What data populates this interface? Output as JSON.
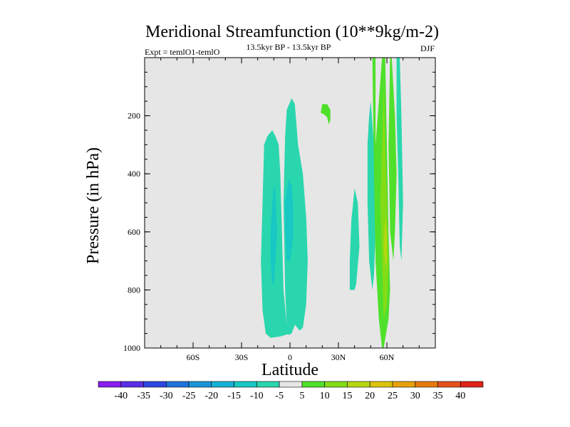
{
  "chart_data": {
    "type": "contour",
    "title": "Meridional Streamfunction (10**9kg/m-2)",
    "subtitle_left": "Expt = temlO1-temlO",
    "subtitle_center": "13.5kyr BP - 13.5kyr BP",
    "subtitle_right": "DJF",
    "xlabel": "Latitude",
    "ylabel": "Pressure (in hPa)",
    "x_range": [
      -90,
      90
    ],
    "y_range": [
      0,
      1000
    ],
    "y_inverted": true,
    "x_ticks": [
      {
        "value": -60,
        "label": "60S"
      },
      {
        "value": -30,
        "label": "30S"
      },
      {
        "value": 0,
        "label": "0"
      },
      {
        "value": 30,
        "label": "30N"
      },
      {
        "value": 60,
        "label": "60N"
      }
    ],
    "y_ticks": [
      {
        "value": 200,
        "label": "200"
      },
      {
        "value": 400,
        "label": "400"
      },
      {
        "value": 600,
        "label": "600"
      },
      {
        "value": 800,
        "label": "800"
      },
      {
        "value": 1000,
        "label": "1000"
      }
    ],
    "background_color": "#e6e6e6",
    "colorbar": {
      "labels": [
        "-40",
        "-35",
        "-30",
        "-25",
        "-20",
        "-15",
        "-10",
        "-5",
        "5",
        "10",
        "15",
        "20",
        "25",
        "30",
        "35",
        "40"
      ],
      "colors": [
        "#8a1cf0",
        "#5a2ee6",
        "#2f47e0",
        "#1f73dc",
        "#1a95d8",
        "#14b1d4",
        "#17c8c4",
        "#2ad6ad",
        "#e6e6e6",
        "#50e02b",
        "#84dc16",
        "#b4d810",
        "#dcc40c",
        "#e6a20c",
        "#e67a0e",
        "#e6501a",
        "#e02418"
      ]
    },
    "regions": [
      {
        "name": "tropical-cell-outer",
        "color": "#2ad6ad",
        "points": [
          [
            -15,
            950
          ],
          [
            -17,
            870
          ],
          [
            -18,
            700
          ],
          [
            -17,
            500
          ],
          [
            -16,
            300
          ],
          [
            -14,
            270
          ],
          [
            -11,
            250
          ],
          [
            -9,
            270
          ],
          [
            -7,
            300
          ],
          [
            -6,
            400
          ],
          [
            -5,
            600
          ],
          [
            -4,
            800
          ],
          [
            -2,
            920
          ],
          [
            0,
            950
          ],
          [
            -6,
            960
          ],
          [
            -12,
            965
          ]
        ]
      },
      {
        "name": "tropical-cell-outer-east",
        "color": "#2ad6ad",
        "points": [
          [
            -2,
            920
          ],
          [
            -3,
            800
          ],
          [
            -4,
            500
          ],
          [
            -3,
            270
          ],
          [
            -2,
            180
          ],
          [
            1,
            140
          ],
          [
            3,
            160
          ],
          [
            5,
            300
          ],
          [
            8,
            400
          ],
          [
            10,
            550
          ],
          [
            11,
            700
          ],
          [
            10,
            850
          ],
          [
            8,
            930
          ],
          [
            6,
            940
          ],
          [
            3,
            920
          ],
          [
            1,
            950
          ],
          [
            -1,
            955
          ]
        ]
      },
      {
        "name": "tropical-cell-inner-west",
        "color": "#17c8c4",
        "points": [
          [
            -11,
            780
          ],
          [
            -12,
            700
          ],
          [
            -12,
            600
          ],
          [
            -11,
            500
          ],
          [
            -10,
            440
          ],
          [
            -9,
            460
          ],
          [
            -8,
            600
          ],
          [
            -9,
            700
          ],
          [
            -10,
            780
          ]
        ]
      },
      {
        "name": "tropical-cell-inner-east",
        "color": "#17c8c4",
        "points": [
          [
            -2,
            700
          ],
          [
            -3,
            600
          ],
          [
            -3,
            500
          ],
          [
            -1,
            420
          ],
          [
            1,
            440
          ],
          [
            2,
            520
          ],
          [
            2,
            620
          ],
          [
            0,
            700
          ]
        ]
      },
      {
        "name": "subtropical-cell-20n",
        "color": "#50e02b",
        "points": [
          [
            19,
            190
          ],
          [
            20,
            160
          ],
          [
            23,
            160
          ],
          [
            25,
            180
          ],
          [
            25,
            215
          ],
          [
            24,
            230
          ],
          [
            23,
            205
          ],
          [
            21,
            195
          ]
        ]
      },
      {
        "name": "midlat-cell-40n",
        "color": "#2ad6ad",
        "points": [
          [
            37,
            800
          ],
          [
            37,
            700
          ],
          [
            38,
            560
          ],
          [
            40,
            450
          ],
          [
            42,
            500
          ],
          [
            43,
            650
          ],
          [
            41,
            780
          ],
          [
            40,
            800
          ]
        ]
      },
      {
        "name": "midlat-cell-50n",
        "color": "#2ad6ad",
        "points": [
          [
            48,
            300
          ],
          [
            49,
            200
          ],
          [
            50,
            150
          ],
          [
            52,
            300
          ],
          [
            53,
            600
          ],
          [
            52,
            750
          ],
          [
            51,
            800
          ],
          [
            49,
            700
          ],
          [
            48,
            500
          ]
        ]
      },
      {
        "name": "polar-cell-green",
        "color": "#50e02b",
        "points": [
          [
            51,
            0
          ],
          [
            53,
            0
          ],
          [
            53,
            300
          ],
          [
            55,
            150
          ],
          [
            57,
            0
          ],
          [
            59,
            0
          ],
          [
            60,
            300
          ],
          [
            61,
            600
          ],
          [
            62,
            800
          ],
          [
            61,
            900
          ],
          [
            58,
            1000
          ],
          [
            57,
            1000
          ],
          [
            55,
            900
          ],
          [
            53,
            700
          ],
          [
            52,
            400
          ]
        ]
      },
      {
        "name": "polar-cell-green-east",
        "color": "#50e02b",
        "points": [
          [
            62,
            0
          ],
          [
            63,
            0
          ],
          [
            65,
            200
          ],
          [
            66,
            400
          ],
          [
            65,
            600
          ],
          [
            64,
            700
          ],
          [
            62,
            600
          ],
          [
            61,
            300
          ]
        ]
      },
      {
        "name": "polar-cell-yellowgreen",
        "color": "#84dc16",
        "points": [
          [
            58,
            100
          ],
          [
            59,
            300
          ],
          [
            60,
            500
          ],
          [
            61,
            700
          ],
          [
            60,
            850
          ],
          [
            58,
            900
          ],
          [
            57,
            700
          ],
          [
            56,
            500
          ],
          [
            57,
            300
          ]
        ]
      },
      {
        "name": "polar-cell-yellow",
        "color": "#b4d810",
        "points": [
          [
            59,
            550
          ],
          [
            60,
            600
          ],
          [
            60,
            700
          ],
          [
            59,
            720
          ],
          [
            58,
            650
          ]
        ]
      },
      {
        "name": "polar-cell-cyan-east",
        "color": "#2ad6ad",
        "points": [
          [
            66,
            0
          ],
          [
            68,
            0
          ],
          [
            69,
            200
          ],
          [
            70,
            500
          ],
          [
            69,
            700
          ],
          [
            68,
            650
          ],
          [
            67,
            400
          ],
          [
            66,
            200
          ]
        ]
      }
    ]
  }
}
